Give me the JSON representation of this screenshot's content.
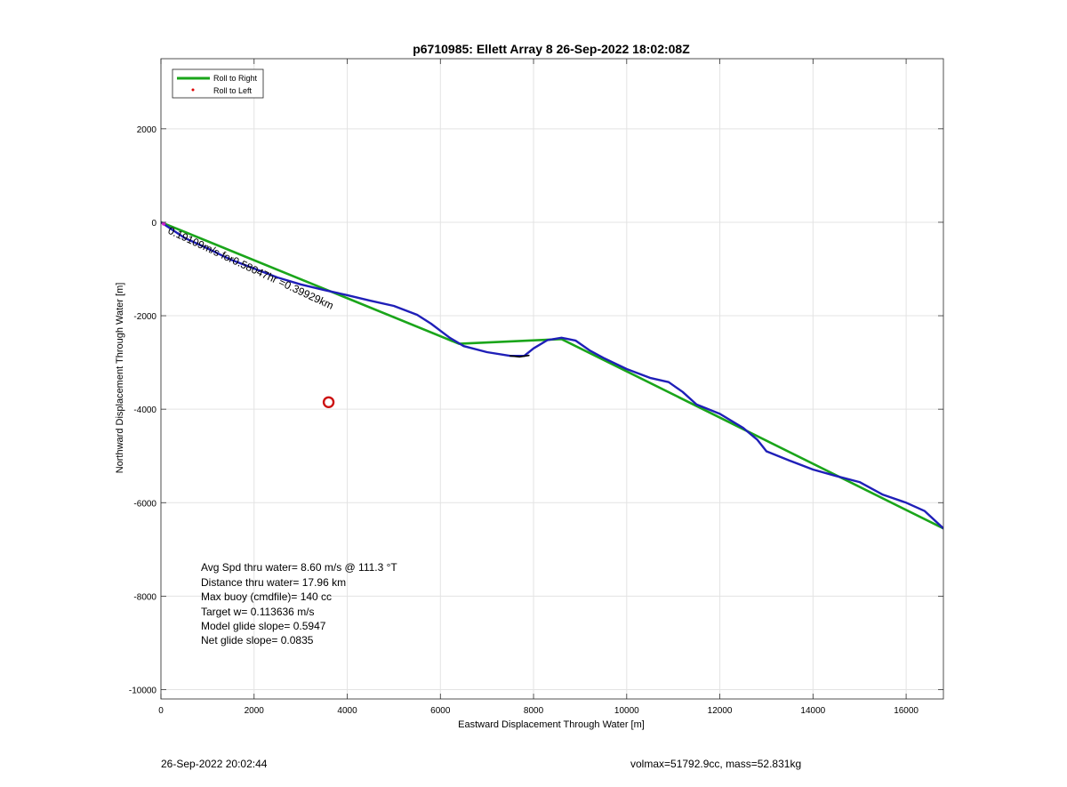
{
  "chart_data": {
    "type": "line",
    "title": "p6710985: Ellett Array 8 26-Sep-2022 18:02:08Z",
    "xlabel": "Eastward Displacement Through Water [m]",
    "ylabel": "Northward Displacement Through Water [m]",
    "xlim": [
      0,
      16800
    ],
    "ylim": [
      -10200,
      3500
    ],
    "xticks": [
      0,
      2000,
      4000,
      6000,
      8000,
      10000,
      12000,
      14000,
      16000
    ],
    "yticks": [
      2000,
      0,
      -2000,
      -4000,
      -6000,
      -8000,
      -10000
    ],
    "grid": true,
    "legend_position": "top-left",
    "legend": [
      {
        "label": "Roll to Right",
        "color": "#1aa51a",
        "style": "line"
      },
      {
        "label": "Roll to Left",
        "color": "#e00000",
        "style": "dot"
      }
    ],
    "series": [
      {
        "name": "Roll to Right",
        "color": "#1aa51a",
        "x": [
          0,
          6400,
          8600,
          16800
        ],
        "y": [
          0,
          -2600,
          -2500,
          -6550
        ]
      },
      {
        "color": "#1f1fb8",
        "x": [
          0,
          500,
          1000,
          1500,
          2000,
          2500,
          3000,
          3500,
          4000,
          4500,
          5000,
          5500,
          5800,
          6000,
          6200,
          6500,
          7000,
          7500,
          7800,
          8000,
          8300,
          8600,
          8900,
          9200,
          9500,
          10000,
          10500,
          10900,
          11200,
          11500,
          12000,
          12500,
          12800,
          13000,
          13500,
          14000,
          14500,
          15000,
          15500,
          16000,
          16400,
          16800
        ],
        "y": [
          0,
          -330,
          -560,
          -800,
          -990,
          -1180,
          -1330,
          -1450,
          -1560,
          -1680,
          -1790,
          -1980,
          -2170,
          -2320,
          -2470,
          -2650,
          -2780,
          -2860,
          -2860,
          -2700,
          -2520,
          -2470,
          -2530,
          -2740,
          -2900,
          -3140,
          -3330,
          -3420,
          -3630,
          -3900,
          -4100,
          -4400,
          -4650,
          -4900,
          -5100,
          -5290,
          -5430,
          -5560,
          -5830,
          -6000,
          -6180,
          -6550
        ]
      },
      {
        "color": "#000000",
        "x": [
          7500,
          7700,
          7900
        ],
        "y": [
          -2860,
          -2880,
          -2850
        ]
      }
    ],
    "markers": [
      {
        "x": 3600,
        "y": -3850,
        "color": "#cc1111",
        "shape": "circle"
      }
    ],
    "annotations": [
      {
        "text": "Avg Spd thru water=  8.60 m/s @ 111.3 °T"
      },
      {
        "text": "Distance thru water= 17.96 km"
      },
      {
        "text": "Max buoy (cmdfile)= 140 cc"
      },
      {
        "text": "Target w= 0.113636 m/s"
      },
      {
        "text": "Model glide slope= 0.5947"
      },
      {
        "text": "Net glide slope= 0.0835"
      }
    ],
    "rotated_label": "0.19109m/s for0.58047hr =0.39929km"
  },
  "footer": {
    "left": "26-Sep-2022 20:02:44",
    "right": "volmax=51792.9cc, mass=52.831kg"
  }
}
